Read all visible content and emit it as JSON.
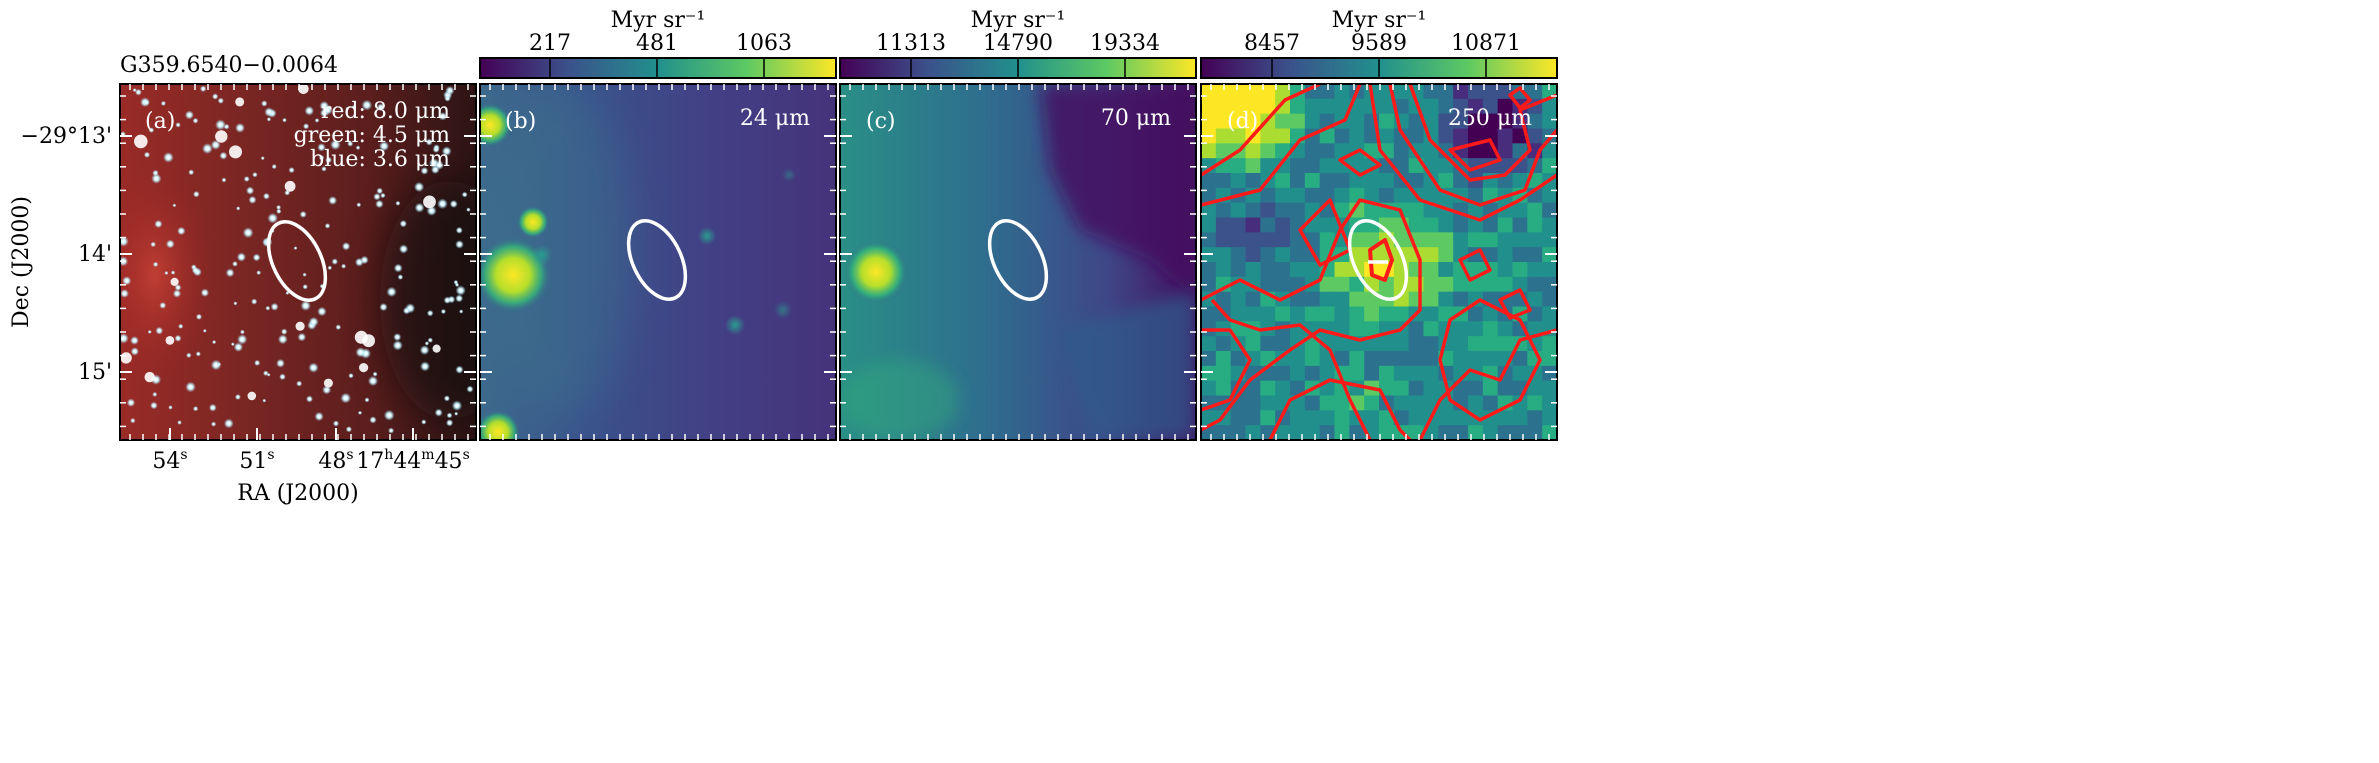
{
  "source_name": "G359.6540−0.0064",
  "axes": {
    "xlabel": "RA (J2000)",
    "ylabel": "Dec (J2000)",
    "ra_ticks": [
      {
        "base": "54",
        "sup": "s"
      },
      {
        "base": "51",
        "sup": "s"
      },
      {
        "base": "48",
        "sup": "s"
      },
      {
        "base": "17",
        "sup": "h",
        "base2": "44",
        "sup2": "m",
        "base3": "45",
        "sup3": "s"
      }
    ],
    "dec_ticks": [
      "−29°13'",
      "14'",
      "15'"
    ]
  },
  "panels": [
    {
      "letter": "(a)",
      "legend": [
        "red: 8.0 μm",
        "green: 4.5 μm",
        "blue: 3.6 μm"
      ]
    },
    {
      "letter": "(b)",
      "wavelength": "24 μm",
      "colorbar": {
        "unit": "Myr sr⁻¹",
        "ticks": [
          "217",
          "481",
          "1063"
        ]
      }
    },
    {
      "letter": "(c)",
      "wavelength": "70 μm",
      "colorbar": {
        "unit": "Myr sr⁻¹",
        "ticks": [
          "11313",
          "14790",
          "19334"
        ]
      }
    },
    {
      "letter": "(d)",
      "wavelength": "250 μm",
      "colorbar": {
        "unit": "Myr sr⁻¹",
        "ticks": [
          "8457",
          "9589",
          "10871"
        ]
      }
    }
  ],
  "colors": {
    "colormap": [
      "#440154",
      "#3b528b",
      "#21908d",
      "#5dc963",
      "#fde725"
    ],
    "ellipse": "#ffffff",
    "contours": "#ff1a1a"
  }
}
